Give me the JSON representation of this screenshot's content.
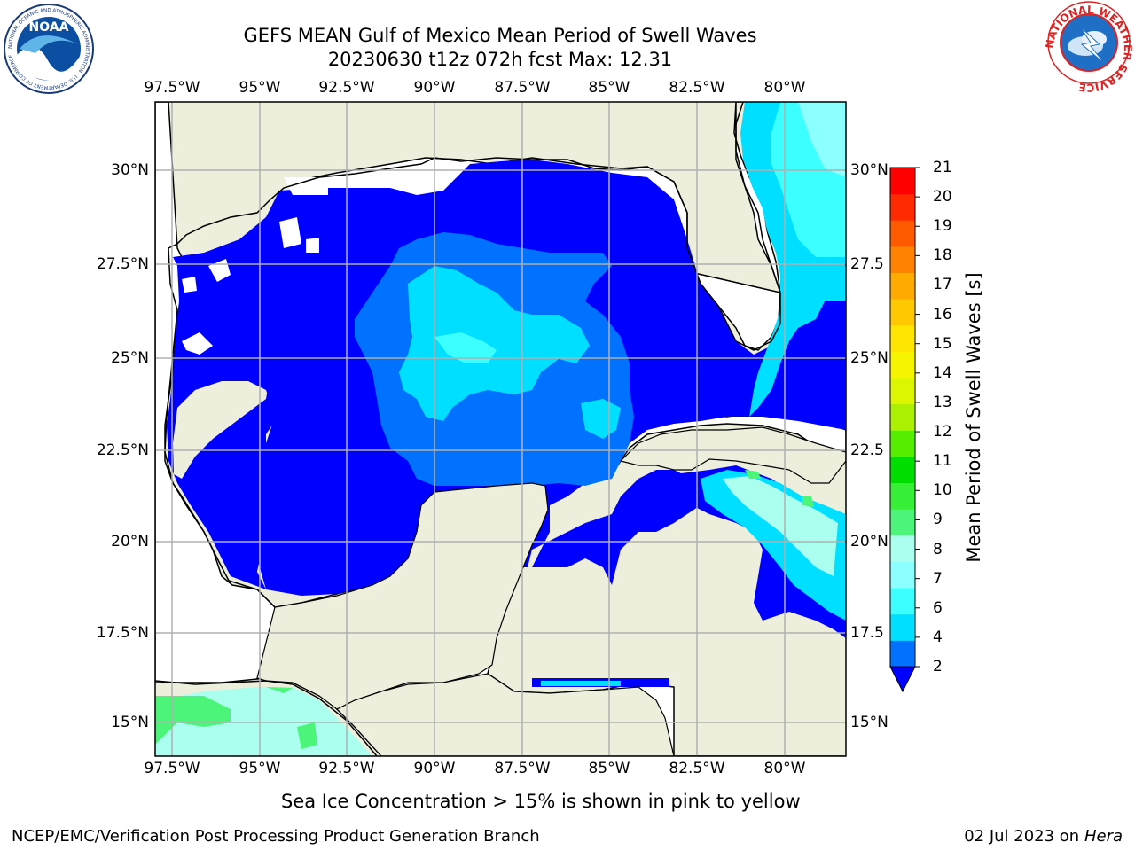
{
  "title": {
    "line1": "GEFS MEAN Gulf of Mexico Mean Period of Swell Waves",
    "line2": "20230630 t12z 072h fcst   Max: 12.31"
  },
  "map": {
    "lon_ticks": [
      "97.5°W",
      "95°W",
      "92.5°W",
      "90°W",
      "87.5°W",
      "85°W",
      "82.5°W",
      "80°W"
    ],
    "lat_ticks_left": [
      "30°N",
      "27.5°N",
      "25°N",
      "22.5°N",
      "20°N",
      "17.5°N",
      "15°N"
    ],
    "lat_ticks_right": [
      "30°N",
      "27.5",
      "25°N",
      "22.5",
      "20°N",
      "17.5",
      "15°N"
    ],
    "land_color": "#eeeedd",
    "ocean_no_data_color": "#ffffff"
  },
  "colorbar": {
    "label": "Mean Period of Swell Waves [s]",
    "ticks": [
      "2",
      "4",
      "6",
      "7",
      "8",
      "9",
      "10",
      "11",
      "12",
      "13",
      "14",
      "15",
      "16",
      "17",
      "18",
      "19",
      "20",
      "21"
    ],
    "colors": [
      "#0072ff",
      "#00dfff",
      "#3cffff",
      "#8cffff",
      "#aaffee",
      "#4cf57a",
      "#38ef38",
      "#00dd00",
      "#55ee00",
      "#aaf000",
      "#dcf500",
      "#f5f500",
      "#ffe600",
      "#ffc800",
      "#ffaa00",
      "#ff8200",
      "#ff5a00",
      "#ff2a00",
      "#ff0000"
    ],
    "extend_color": "#0000ff"
  },
  "caption": "Sea Ice Concentration > 15% is shown in pink to yellow",
  "footer": {
    "left": "NCEP/EMC/Verification Post Processing Product Generation Branch",
    "right_date": "02 Jul 2023 on ",
    "right_host": "Hera"
  },
  "logos": {
    "noaa_text": "NOAA",
    "noaa_ring": "NATIONAL OCEANIC AND ATMOSPHERIC ADMINISTRATION · U.S. DEPARTMENT OF COMMERCE",
    "nws_ring": "NATIONAL WEATHER SERVICE"
  }
}
